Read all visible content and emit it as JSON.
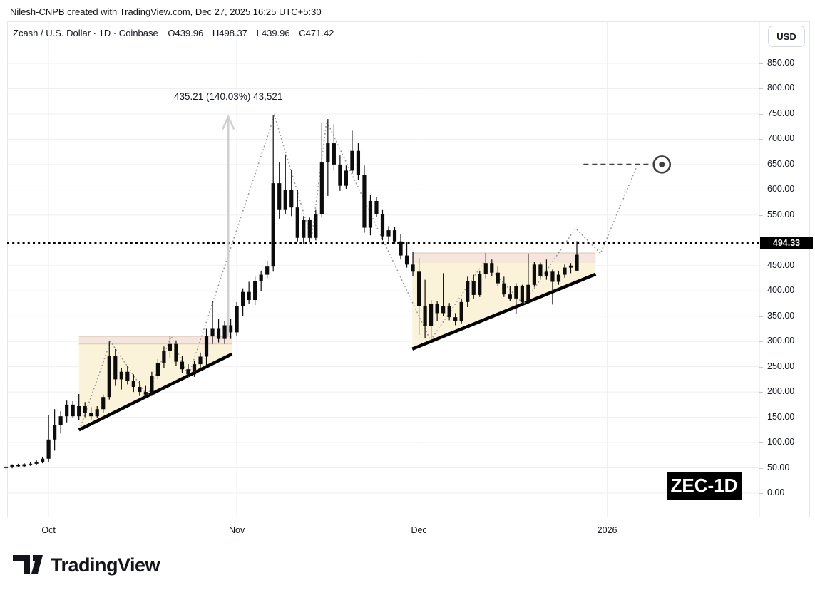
{
  "attribution": "Nilesh-CNPB created with TradingView.com, Dec 27, 2025 16:25 UTC+5:30",
  "header": {
    "symbol": "Zcash / U.S. Dollar · 1D · Coinbase",
    "open": "O439.96",
    "high": "H498.37",
    "low": "L439.96",
    "close": "C471.42"
  },
  "currency_button": "USD",
  "watermark": "ZEC-1D",
  "brand": "TradingView",
  "annotation": {
    "label": "435.21 (140.03%) 43,521"
  },
  "price_line": {
    "value": 494.33,
    "label": "494.33"
  },
  "colors": {
    "candle": "#0c0c0c",
    "grid": "#efefef",
    "frame": "#e4e6eb",
    "zone_fill": "#fbf3d9",
    "band_fill": "#f6e5dc",
    "band_edge": "#d5c9b8",
    "support_line": "#000000",
    "zigzag": "#9a9a9a",
    "price_line": "#000000",
    "target": "#3f3f3f",
    "arrow": "#cccccc",
    "axis_text": "#131722"
  },
  "axes": {
    "price_tick_labels": [
      "0.00",
      "50.00",
      "100.00",
      "150.00",
      "200.00",
      "250.00",
      "300.00",
      "350.00",
      "400.00",
      "450.00",
      "550.00",
      "600.00",
      "650.00",
      "700.00",
      "750.00",
      "800.00",
      "850.00"
    ],
    "time_labels": [
      {
        "label": "Oct",
        "t": 7
      },
      {
        "label": "Nov",
        "t": 38
      },
      {
        "label": "Dec",
        "t": 68
      },
      {
        "label": "2026",
        "t": 99
      }
    ]
  },
  "chart_data": {
    "type": "candlestick",
    "symbol": "ZEC/USD",
    "interval": "1D",
    "exchange": "Coinbase",
    "ylim": [
      0,
      850
    ],
    "grid": true,
    "columns": [
      "date",
      "open",
      "high",
      "low",
      "close"
    ],
    "candles": [
      [
        "Sep 24",
        50,
        54,
        47,
        51
      ],
      [
        "Sep 25",
        51,
        57,
        49,
        55
      ],
      [
        "Sep 26",
        55,
        58,
        51,
        53
      ],
      [
        "Sep 27",
        53,
        59,
        52,
        57
      ],
      [
        "Sep 28",
        57,
        61,
        54,
        58
      ],
      [
        "Sep 29",
        58,
        65,
        55,
        62
      ],
      [
        "Sep 30",
        62,
        72,
        59,
        68
      ],
      [
        "Oct 1",
        68,
        155,
        62,
        106
      ],
      [
        "Oct 2",
        106,
        166,
        84,
        134
      ],
      [
        "Oct 3",
        134,
        162,
        118,
        152
      ],
      [
        "Oct 4",
        152,
        183,
        140,
        175
      ],
      [
        "Oct 5",
        175,
        182,
        148,
        152
      ],
      [
        "Oct 6",
        152,
        196,
        144,
        172
      ],
      [
        "Oct 7",
        172,
        180,
        150,
        158
      ],
      [
        "Oct 8",
        158,
        170,
        146,
        152
      ],
      [
        "Oct 9",
        152,
        172,
        148,
        166
      ],
      [
        "Oct 10",
        166,
        195,
        158,
        190
      ],
      [
        "Oct 11",
        190,
        300,
        185,
        272
      ],
      [
        "Oct 12",
        272,
        285,
        212,
        225
      ],
      [
        "Oct 13",
        225,
        248,
        205,
        240
      ],
      [
        "Oct 14",
        240,
        252,
        215,
        222
      ],
      [
        "Oct 15",
        222,
        235,
        200,
        210
      ],
      [
        "Oct 16",
        210,
        222,
        192,
        200
      ],
      [
        "Oct 17",
        200,
        212,
        190,
        195
      ],
      [
        "Oct 18",
        195,
        240,
        192,
        232
      ],
      [
        "Oct 19",
        232,
        265,
        225,
        258
      ],
      [
        "Oct 20",
        258,
        290,
        248,
        282
      ],
      [
        "Oct 21",
        282,
        310,
        268,
        295
      ],
      [
        "Oct 22",
        295,
        302,
        252,
        260
      ],
      [
        "Oct 23",
        260,
        272,
        238,
        245
      ],
      [
        "Oct 24",
        245,
        255,
        230,
        235
      ],
      [
        "Oct 25",
        235,
        262,
        230,
        255
      ],
      [
        "Oct 26",
        255,
        278,
        245,
        270
      ],
      [
        "Oct 27",
        270,
        325,
        252,
        310
      ],
      [
        "Oct 28",
        310,
        380,
        295,
        325
      ],
      [
        "Oct 29",
        325,
        345,
        298,
        305
      ],
      [
        "Oct 30",
        305,
        340,
        295,
        332
      ],
      [
        "Oct 31",
        332,
        345,
        305,
        318
      ],
      [
        "Nov 1",
        318,
        378,
        310,
        370
      ],
      [
        "Nov 2",
        370,
        405,
        350,
        398
      ],
      [
        "Nov 3",
        398,
        418,
        375,
        382
      ],
      [
        "Nov 4",
        382,
        428,
        372,
        420
      ],
      [
        "Nov 5",
        420,
        440,
        400,
        432
      ],
      [
        "Nov 6",
        432,
        460,
        425,
        448
      ],
      [
        "Nov 7",
        448,
        747,
        438,
        613
      ],
      [
        "Nov 8",
        613,
        655,
        543,
        560
      ],
      [
        "Nov 9",
        560,
        670,
        552,
        600
      ],
      [
        "Nov 10",
        600,
        640,
        548,
        565
      ],
      [
        "Nov 11",
        565,
        600,
        498,
        505
      ],
      [
        "Nov 12",
        505,
        548,
        492,
        540
      ],
      [
        "Nov 13",
        540,
        545,
        497,
        505
      ],
      [
        "Nov 14",
        505,
        560,
        500,
        552
      ],
      [
        "Nov 15",
        552,
        731,
        545,
        654
      ],
      [
        "Nov 16",
        654,
        740,
        588,
        692
      ],
      [
        "Nov 17",
        692,
        730,
        638,
        650
      ],
      [
        "Nov 18",
        650,
        668,
        598,
        608
      ],
      [
        "Nov 19",
        608,
        648,
        602,
        638
      ],
      [
        "Nov 20",
        638,
        717,
        632,
        677
      ],
      [
        "Nov 21",
        677,
        692,
        620,
        630
      ],
      [
        "Nov 22",
        630,
        648,
        515,
        525
      ],
      [
        "Nov 23",
        525,
        590,
        510,
        578
      ],
      [
        "Nov 24",
        578,
        585,
        546,
        552
      ],
      [
        "Nov 25",
        552,
        560,
        500,
        508
      ],
      [
        "Nov 26",
        508,
        528,
        498,
        520
      ],
      [
        "Nov 27",
        520,
        526,
        492,
        498
      ],
      [
        "Nov 28",
        498,
        512,
        462,
        470
      ],
      [
        "Nov 29",
        470,
        496,
        446,
        452
      ],
      [
        "Nov 30",
        452,
        478,
        430,
        438
      ],
      [
        "Dec 1",
        438,
        465,
        313,
        370
      ],
      [
        "Dec 2",
        370,
        422,
        306,
        330
      ],
      [
        "Dec 3",
        330,
        382,
        303,
        375
      ],
      [
        "Dec 4",
        375,
        380,
        340,
        356
      ],
      [
        "Dec 5",
        356,
        435,
        350,
        370
      ],
      [
        "Dec 6",
        370,
        376,
        342,
        348
      ],
      [
        "Dec 7",
        348,
        356,
        332,
        340
      ],
      [
        "Dec 8",
        340,
        385,
        336,
        378
      ],
      [
        "Dec 9",
        378,
        428,
        368,
        420
      ],
      [
        "Dec 10",
        420,
        432,
        385,
        392
      ],
      [
        "Dec 11",
        392,
        440,
        388,
        434
      ],
      [
        "Dec 12",
        434,
        475,
        425,
        455
      ],
      [
        "Dec 13",
        455,
        462,
        430,
        436
      ],
      [
        "Dec 14",
        436,
        448,
        410,
        415
      ],
      [
        "Dec 15",
        415,
        428,
        388,
        393
      ],
      [
        "Dec 16",
        393,
        410,
        380,
        385
      ],
      [
        "Dec 17",
        385,
        415,
        355,
        410
      ],
      [
        "Dec 18",
        410,
        412,
        372,
        378
      ],
      [
        "Dec 19",
        378,
        474,
        375,
        412
      ],
      [
        "Dec 20",
        412,
        458,
        408,
        452
      ],
      [
        "Dec 21",
        452,
        456,
        425,
        430
      ],
      [
        "Dec 22",
        430,
        462,
        422,
        438
      ],
      [
        "Dec 23",
        438,
        442,
        373,
        418
      ],
      [
        "Dec 24",
        418,
        440,
        412,
        432
      ],
      [
        "Dec 25",
        432,
        452,
        426,
        446
      ],
      [
        "Dec 26",
        446,
        455,
        435,
        450
      ],
      [
        "Dec 27",
        439.96,
        498.37,
        439.96,
        471.42
      ]
    ],
    "patterns": [
      {
        "name": "ascending-triangle-oct",
        "t1": 12.0,
        "t2": 37.2,
        "zone_top": 310,
        "zone_bottom": 295,
        "support": [
          [
            12.0,
            125
          ],
          [
            37.2,
            275
          ]
        ]
      },
      {
        "name": "ascending-triangle-dec",
        "t1": 66.9,
        "t2": 97.1,
        "zone_top": 475,
        "zone_bottom": 457,
        "support": [
          [
            66.9,
            285
          ],
          [
            97.1,
            433
          ]
        ]
      }
    ],
    "zigzag": [
      [
        12.3,
        132
      ],
      [
        17.2,
        300
      ],
      [
        23.3,
        192
      ],
      [
        27.2,
        310
      ],
      [
        30.0,
        230
      ],
      [
        44.2,
        747
      ],
      [
        50.3,
        503
      ],
      [
        52.8,
        736
      ],
      [
        69.9,
        302
      ],
      [
        78.7,
        457
      ],
      [
        85.2,
        374
      ],
      [
        93.8,
        524
      ],
      [
        97.9,
        474
      ],
      [
        103.9,
        647
      ]
    ],
    "target": {
      "price": 650,
      "t1": 95.1,
      "t2": 105.9,
      "icon_t": 108.0
    },
    "range_arrow": {
      "t": 36.6,
      "from_price": 310,
      "to_price": 745
    },
    "price_level": 494.33
  }
}
